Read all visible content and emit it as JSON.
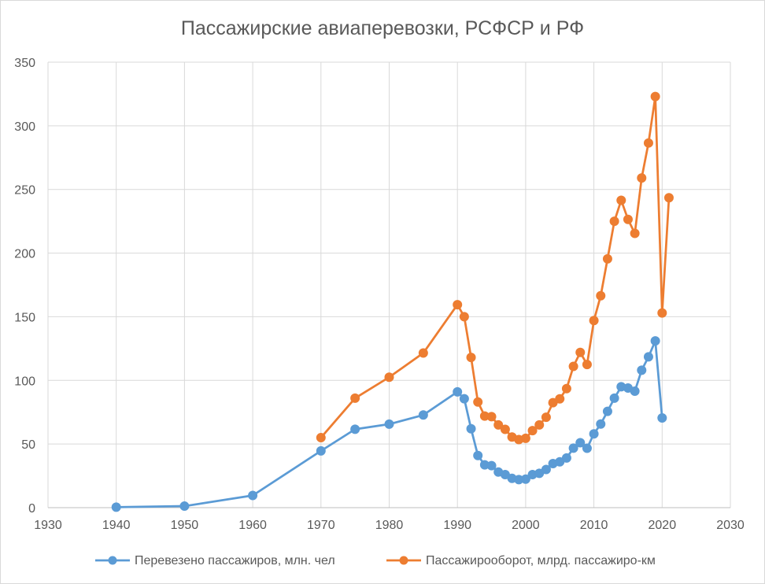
{
  "chart_data": {
    "type": "line",
    "title": "Пассажирские авиаперевозки, РСФСР и РФ",
    "xlim": [
      1930,
      2030
    ],
    "x_ticks": [
      1930,
      1940,
      1950,
      1960,
      1970,
      1980,
      1990,
      2000,
      2010,
      2020,
      2030
    ],
    "ylim": [
      0,
      350
    ],
    "y_ticks": [
      0,
      50,
      100,
      150,
      200,
      250,
      300,
      350
    ],
    "grid": true,
    "legend_position": "bottom",
    "series": [
      {
        "name": "Перевезено пассажиров, млн. чел",
        "color": "#5b9bd5",
        "points": [
          [
            1940,
            0.4
          ],
          [
            1950,
            1.2
          ],
          [
            1960,
            9.6
          ],
          [
            1970,
            44.6
          ],
          [
            1975,
            61.6
          ],
          [
            1980,
            65.6
          ],
          [
            1985,
            72.8
          ],
          [
            1990,
            91.0
          ],
          [
            1991,
            85.6
          ],
          [
            1992,
            62.0
          ],
          [
            1993,
            41.0
          ],
          [
            1994,
            33.6
          ],
          [
            1995,
            33.0
          ],
          [
            1996,
            28.0
          ],
          [
            1997,
            26.0
          ],
          [
            1998,
            23.0
          ],
          [
            1999,
            22.0
          ],
          [
            2000,
            22.4
          ],
          [
            2001,
            26.0
          ],
          [
            2002,
            27.0
          ],
          [
            2003,
            30.0
          ],
          [
            2004,
            34.6
          ],
          [
            2005,
            36.0
          ],
          [
            2006,
            39.0
          ],
          [
            2007,
            46.8
          ],
          [
            2008,
            51.0
          ],
          [
            2009,
            46.7
          ],
          [
            2010,
            58.0
          ],
          [
            2011,
            65.7
          ],
          [
            2012,
            75.7
          ],
          [
            2013,
            86.0
          ],
          [
            2014,
            95.0
          ],
          [
            2015,
            94.0
          ],
          [
            2016,
            91.5
          ],
          [
            2017,
            108.0
          ],
          [
            2018,
            118.5
          ],
          [
            2019,
            131.0
          ],
          [
            2020,
            70.5
          ]
        ]
      },
      {
        "name": "Пассажирооборот, млрд. пассажиро-км",
        "color": "#ed7d31",
        "points": [
          [
            1970,
            55.0
          ],
          [
            1975,
            86.0
          ],
          [
            1980,
            102.5
          ],
          [
            1985,
            121.5
          ],
          [
            1990,
            159.5
          ],
          [
            1991,
            150.0
          ],
          [
            1992,
            118.0
          ],
          [
            1993,
            83.0
          ],
          [
            1994,
            72.0
          ],
          [
            1995,
            71.5
          ],
          [
            1996,
            65.0
          ],
          [
            1997,
            61.5
          ],
          [
            1998,
            55.5
          ],
          [
            1999,
            53.5
          ],
          [
            2000,
            54.5
          ],
          [
            2001,
            60.5
          ],
          [
            2002,
            65.0
          ],
          [
            2003,
            71.0
          ],
          [
            2004,
            82.5
          ],
          [
            2005,
            85.5
          ],
          [
            2006,
            93.5
          ],
          [
            2007,
            111.0
          ],
          [
            2008,
            122.0
          ],
          [
            2009,
            112.5
          ],
          [
            2010,
            147.0
          ],
          [
            2011,
            166.5
          ],
          [
            2012,
            195.5
          ],
          [
            2013,
            225.0
          ],
          [
            2014,
            241.5
          ],
          [
            2015,
            226.5
          ],
          [
            2016,
            215.5
          ],
          [
            2017,
            259.0
          ],
          [
            2018,
            286.5
          ],
          [
            2019,
            323.0
          ],
          [
            2020,
            153.0
          ],
          [
            2021,
            243.5
          ]
        ]
      }
    ]
  }
}
